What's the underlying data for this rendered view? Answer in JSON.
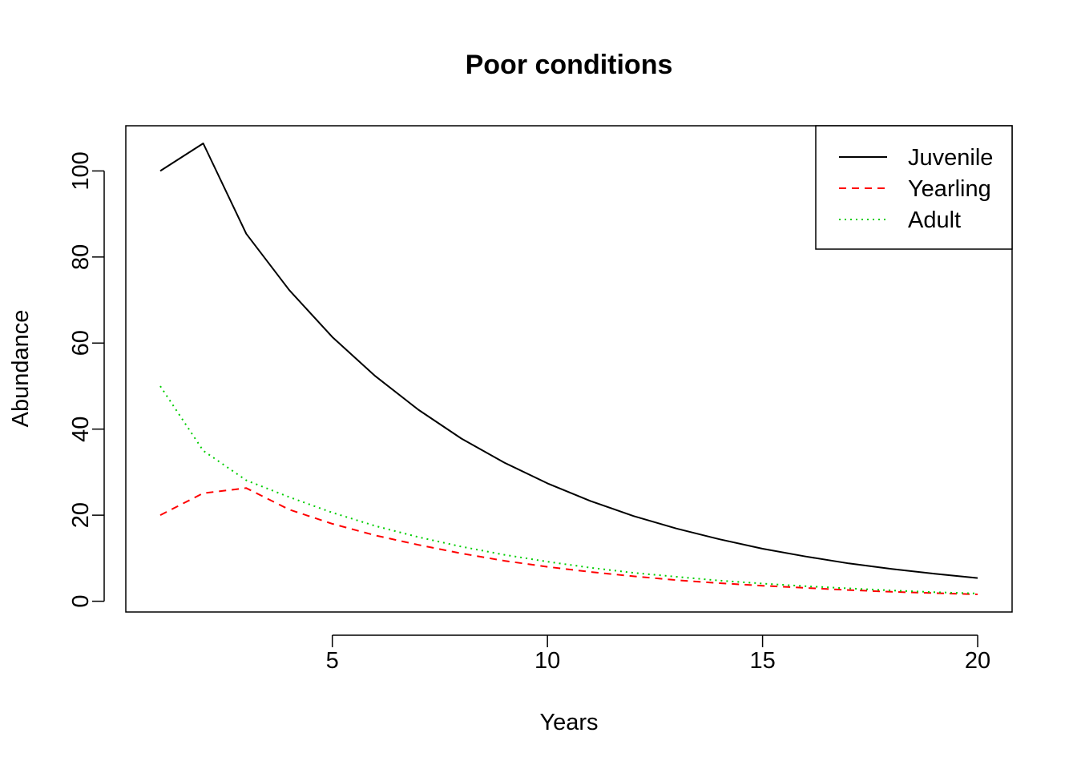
{
  "chart_data": {
    "type": "line",
    "title": "Poor conditions",
    "xlabel": "Years",
    "ylabel": "Abundance",
    "xlim": [
      0.2,
      20.8
    ],
    "ylim": [
      -2.5,
      110.5
    ],
    "xticks": [
      5,
      10,
      15,
      20
    ],
    "yticks": [
      0,
      20,
      40,
      60,
      80,
      100
    ],
    "grid": false,
    "legend_position": "top-right",
    "x": [
      1,
      2,
      3,
      4,
      5,
      6,
      7,
      8,
      9,
      10,
      11,
      12,
      13,
      14,
      15,
      16,
      17,
      18,
      19,
      20
    ],
    "series": [
      {
        "name": "Juvenile",
        "color": "#000000",
        "dash": "solid",
        "values": [
          100,
          106.4,
          85.4,
          72.3,
          61.4,
          52.3,
          44.5,
          37.8,
          32.2,
          27.4,
          23.3,
          19.8,
          16.9,
          14.4,
          12.2,
          10.4,
          8.8,
          7.5,
          6.4,
          5.4
        ]
      },
      {
        "name": "Yearling",
        "color": "#ff0000",
        "dash": "dashed",
        "values": [
          20,
          25.1,
          26.3,
          21.3,
          18.0,
          15.3,
          13.1,
          11.1,
          9.4,
          8.0,
          6.8,
          5.8,
          4.9,
          4.2,
          3.6,
          3.1,
          2.6,
          2.2,
          1.9,
          1.6
        ]
      },
      {
        "name": "Adult",
        "color": "#00cd00",
        "dash": "dotted",
        "values": [
          50,
          35.0,
          28.1,
          24.2,
          20.6,
          17.5,
          14.9,
          12.7,
          10.8,
          9.2,
          7.8,
          6.6,
          5.7,
          4.8,
          4.1,
          3.5,
          3.0,
          2.5,
          2.1,
          1.8
        ]
      }
    ]
  }
}
